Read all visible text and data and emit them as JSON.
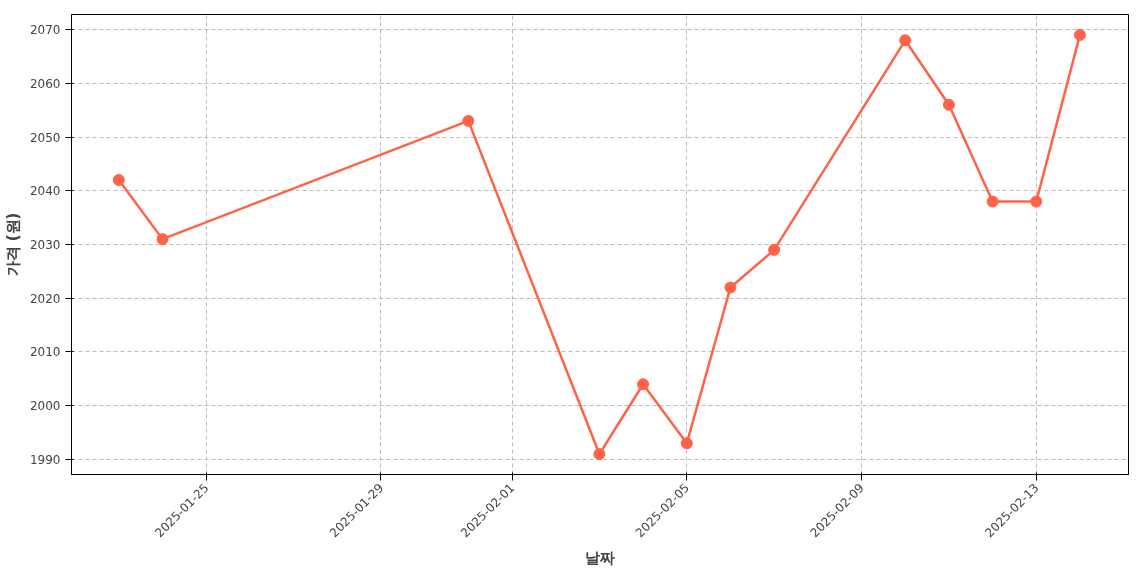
{
  "chart_data": {
    "type": "line",
    "xlabel": "날짜",
    "ylabel": "가격 (원)",
    "x": [
      "2025-01-23",
      "2025-01-24",
      "2025-01-31",
      "2025-02-03",
      "2025-02-04",
      "2025-02-05",
      "2025-02-06",
      "2025-02-07",
      "2025-02-10",
      "2025-02-11",
      "2025-02-12",
      "2025-02-13",
      "2025-02-14"
    ],
    "series": [
      {
        "color": "#ff6347",
        "values": [
          2042,
          2031,
          2053,
          1991,
          2004,
          1993,
          2022,
          2029,
          2068,
          2056,
          2038,
          2038,
          2069
        ]
      }
    ],
    "xlim": [
      "2025-01-21T22:00",
      "2025-02-15T02:40"
    ],
    "xticks": [
      "2025-01-25",
      "2025-01-29",
      "2025-02-01",
      "2025-02-05",
      "2025-02-09",
      "2025-02-13"
    ],
    "ylim": [
      1987.2,
      2072.8
    ],
    "yticks": [
      1990,
      2000,
      2010,
      2020,
      2030,
      2040,
      2050,
      2060,
      2070
    ],
    "grid": true,
    "marker": "circle",
    "line_style": "solid"
  }
}
